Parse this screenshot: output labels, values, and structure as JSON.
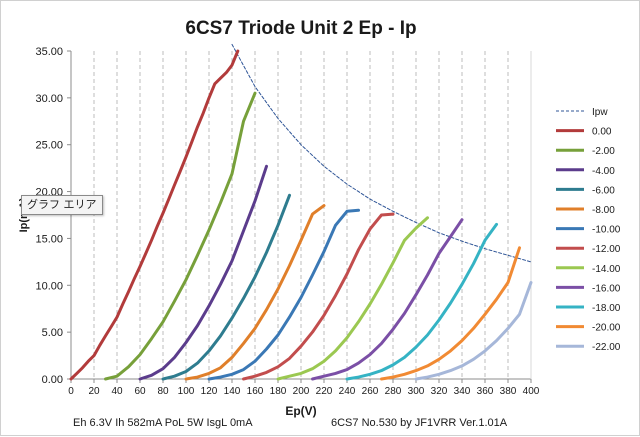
{
  "chart_data": {
    "type": "line",
    "title": "6CS7 Triode Unit 2 Ep - Ip",
    "xlabel": "Ep(V)",
    "ylabel": "Ip(mA)",
    "xlim": [
      0,
      400
    ],
    "ylim": [
      0,
      35
    ],
    "x_ticks": [
      "0",
      "20",
      "40",
      "60",
      "80",
      "100",
      "120",
      "140",
      "160",
      "180",
      "200",
      "220",
      "240",
      "260",
      "280",
      "300",
      "320",
      "340",
      "360",
      "380",
      "400"
    ],
    "y_ticks": [
      "0.00",
      "5.00",
      "10.00",
      "15.00",
      "20.00",
      "25.00",
      "30.00",
      "35.00"
    ],
    "grid": "vertical dashed",
    "legend_position": "right",
    "footer_left": "Eh  6.3V Ih  582mA PoL  5W IsgL  0mA",
    "footer_right": "6CS7 No.530  by JF1VRR Ver.1.01A",
    "tooltip": "グラフ エリア",
    "series": [
      {
        "name": "Ipw",
        "color": "#2f5597",
        "dashed": true,
        "x": [
          140,
          160,
          180,
          200,
          220,
          240,
          260,
          280,
          300,
          320,
          340,
          360,
          380,
          400
        ],
        "y": [
          35.7,
          31.2,
          27.8,
          25.0,
          22.7,
          20.8,
          19.2,
          17.9,
          16.7,
          15.6,
          14.7,
          13.9,
          13.2,
          12.5
        ]
      },
      {
        "name": "0.00",
        "color": "#b23b3b",
        "x": [
          0,
          5,
          10,
          15,
          20,
          25,
          30,
          35,
          40,
          45,
          50,
          55,
          60,
          65,
          70,
          75,
          80,
          85,
          90,
          95,
          100,
          105,
          110,
          115,
          120,
          125,
          130,
          135,
          140,
          145
        ],
        "y": [
          0,
          0.6,
          1.2,
          1.9,
          2.5,
          3.6,
          4.6,
          5.6,
          6.6,
          8.0,
          9.3,
          10.7,
          12.0,
          13.4,
          14.8,
          16.3,
          17.7,
          19.2,
          20.7,
          22.2,
          23.7,
          25.3,
          26.9,
          28.4,
          30.0,
          31.5,
          32.1,
          32.7,
          33.5,
          35.0
        ]
      },
      {
        "name": "-2.00",
        "color": "#77a03a",
        "x": [
          30,
          40,
          50,
          60,
          70,
          80,
          90,
          100,
          110,
          120,
          130,
          140,
          150,
          160
        ],
        "y": [
          0,
          0.3,
          1.3,
          2.6,
          4.3,
          6.1,
          8.3,
          10.6,
          13.2,
          15.9,
          18.8,
          21.9,
          27.5,
          30.5
        ]
      },
      {
        "name": "-4.00",
        "color": "#5b3c8c",
        "x": [
          60,
          70,
          80,
          90,
          100,
          110,
          120,
          130,
          140,
          150,
          160,
          170
        ],
        "y": [
          0,
          0.4,
          1.1,
          2.3,
          3.9,
          5.7,
          7.8,
          10.1,
          12.6,
          15.8,
          19.0,
          22.7
        ]
      },
      {
        "name": "-6.00",
        "color": "#2e7c8f",
        "x": [
          80,
          90,
          100,
          110,
          120,
          130,
          140,
          150,
          160,
          170,
          180,
          190
        ],
        "y": [
          0,
          0.3,
          0.8,
          1.7,
          3.0,
          4.6,
          6.5,
          8.6,
          10.9,
          13.5,
          16.4,
          19.6
        ]
      },
      {
        "name": "-8.00",
        "color": "#e07f2a",
        "x": [
          100,
          110,
          120,
          130,
          140,
          150,
          160,
          170,
          180,
          190,
          200,
          210,
          220
        ],
        "y": [
          0,
          0.2,
          0.6,
          1.2,
          2.3,
          3.8,
          5.4,
          7.4,
          9.6,
          12.1,
          14.8,
          17.6,
          18.5
        ]
      },
      {
        "name": "-10.00",
        "color": "#3a78b5",
        "x": [
          120,
          130,
          140,
          150,
          160,
          170,
          180,
          190,
          200,
          210,
          220,
          230,
          240,
          250
        ],
        "y": [
          0,
          0.2,
          0.5,
          1.0,
          1.9,
          3.2,
          4.7,
          6.6,
          8.7,
          11.1,
          13.6,
          16.4,
          17.9,
          18.0
        ]
      },
      {
        "name": "-12.00",
        "color": "#c24d4d",
        "x": [
          150,
          160,
          170,
          180,
          190,
          200,
          210,
          220,
          230,
          240,
          250,
          260,
          270,
          280
        ],
        "y": [
          0,
          0.3,
          0.7,
          1.3,
          2.2,
          3.5,
          5.0,
          6.8,
          8.9,
          11.2,
          13.8,
          16.0,
          17.5,
          17.6
        ]
      },
      {
        "name": "-14.00",
        "color": "#9bc851",
        "x": [
          180,
          190,
          200,
          210,
          220,
          230,
          240,
          250,
          260,
          270,
          280,
          290,
          300,
          310
        ],
        "y": [
          0,
          0.3,
          0.6,
          1.1,
          1.9,
          3.0,
          4.4,
          6.1,
          8.0,
          10.1,
          12.4,
          14.8,
          16.1,
          17.2
        ]
      },
      {
        "name": "-16.00",
        "color": "#7b4fa6",
        "x": [
          210,
          220,
          230,
          240,
          250,
          260,
          270,
          280,
          290,
          300,
          310,
          320,
          330,
          340
        ],
        "y": [
          0,
          0.3,
          0.6,
          1.0,
          1.7,
          2.6,
          3.8,
          5.3,
          7.0,
          9.0,
          11.1,
          13.4,
          15.2,
          17.0
        ]
      },
      {
        "name": "-18.00",
        "color": "#35b3c4",
        "x": [
          240,
          250,
          260,
          270,
          280,
          290,
          300,
          310,
          320,
          330,
          340,
          350,
          360,
          370
        ],
        "y": [
          0,
          0.2,
          0.5,
          0.9,
          1.5,
          2.3,
          3.4,
          4.7,
          6.3,
          8.1,
          10.1,
          12.3,
          14.8,
          16.5
        ]
      },
      {
        "name": "-20.00",
        "color": "#f18a33",
        "x": [
          270,
          280,
          290,
          300,
          310,
          320,
          330,
          340,
          350,
          360,
          370,
          380,
          390
        ],
        "y": [
          0,
          0.2,
          0.5,
          0.9,
          1.4,
          2.1,
          3.0,
          4.1,
          5.4,
          6.9,
          8.5,
          10.3,
          14.0
        ]
      },
      {
        "name": "-22.00",
        "color": "#a6b7d9",
        "x": [
          300,
          310,
          320,
          330,
          340,
          350,
          360,
          370,
          380,
          390,
          400
        ],
        "y": [
          0,
          0.2,
          0.5,
          0.9,
          1.4,
          2.1,
          3.0,
          4.1,
          5.4,
          6.9,
          10.3
        ]
      }
    ]
  }
}
